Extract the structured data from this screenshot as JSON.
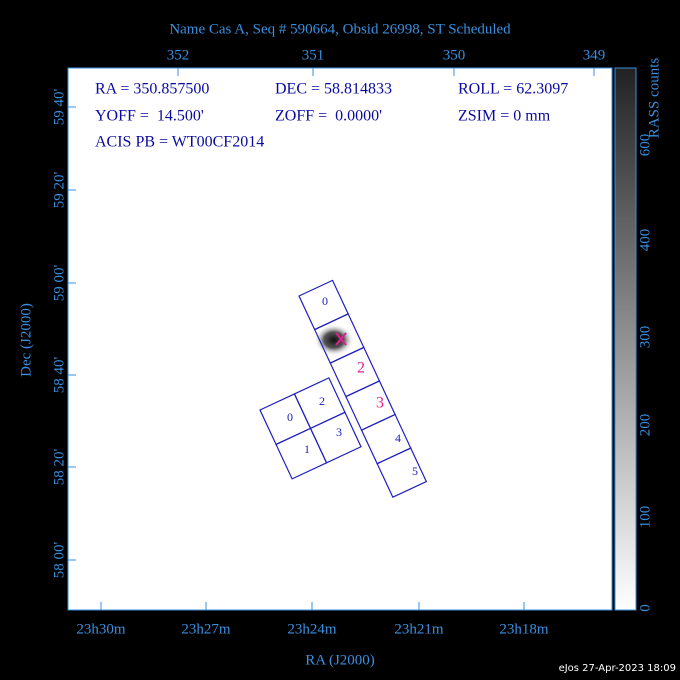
{
  "header": {
    "title": "Name Cas A, Seq # 590664, Obsid 26998, ST Scheduled"
  },
  "axes": {
    "top_ticks": [
      "352",
      "351",
      "350",
      "349"
    ],
    "left_ticks": [
      "59 40'",
      "59 20'",
      "59 00'",
      "58 40'",
      "58 20'",
      "58 00'"
    ],
    "bottom_ticks": [
      "23h30m",
      "23h27m",
      "23h24m",
      "23h21m",
      "23h18m"
    ],
    "x_label": "RA (J2000)",
    "y_label": "Dec (J2000)"
  },
  "info": {
    "ra": "RA = 350.857500",
    "dec": "DEC = 58.814833",
    "roll": "ROLL = 62.3097",
    "yoff": "YOFF =  14.500'",
    "zoff": "ZOFF =  0.0000'",
    "zsim": "ZSIM = 0 mm",
    "acis": "ACIS PB = WT00CF2014"
  },
  "colorbar": {
    "title": "RASS counts",
    "labels": [
      "0",
      "100",
      "200",
      "300",
      "400",
      "600"
    ]
  },
  "chips": {
    "i_array": [
      "0",
      "2",
      "1",
      "3"
    ],
    "s_array": [
      "0",
      "2",
      "3",
      "4",
      "5"
    ]
  },
  "footer": "eJos 27-Apr-2023 18:09"
}
